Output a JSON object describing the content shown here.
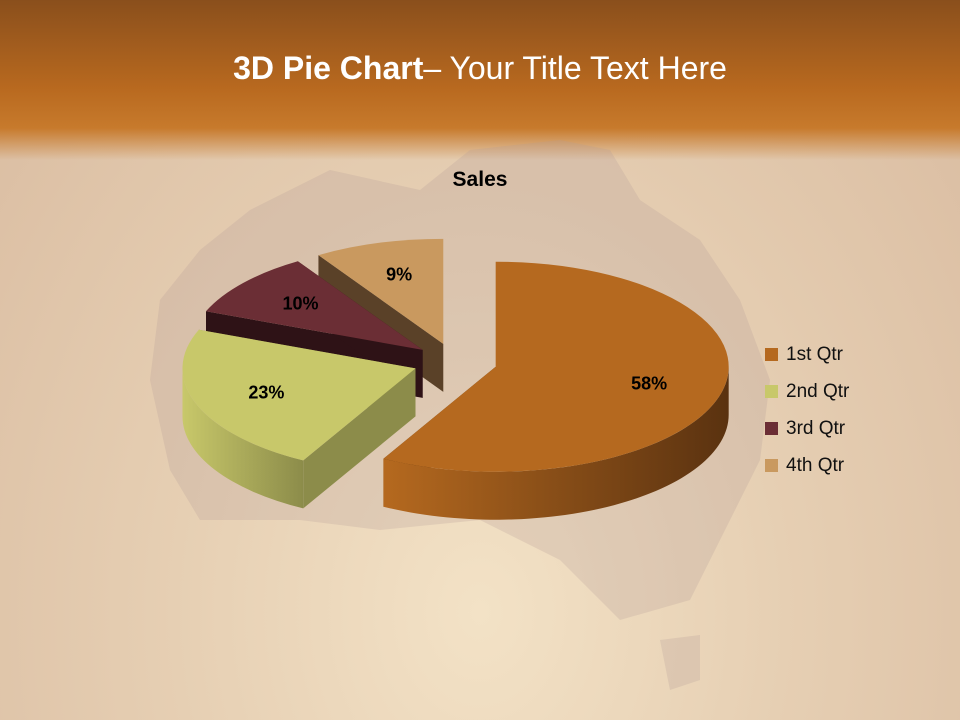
{
  "slide": {
    "title_bold": "3D Pie Chart",
    "title_rest": "– Your Title Text Here"
  },
  "chart_data": {
    "type": "pie",
    "style": "3d-exploded",
    "title": "Sales",
    "categories": [
      "1st Qtr",
      "2nd Qtr",
      "3rd Qtr",
      "4th Qtr"
    ],
    "values": [
      58,
      23,
      10,
      9
    ],
    "data_labels": [
      "58%",
      "23%",
      "10%",
      "9%"
    ],
    "colors": [
      "#B5691F",
      "#C8C86A",
      "#6B2E35",
      "#C9995F"
    ],
    "side_colors": [
      "#5a3210",
      "#8c8c4a",
      "#2e1216",
      "#5a4128"
    ],
    "legend_position": "right"
  }
}
